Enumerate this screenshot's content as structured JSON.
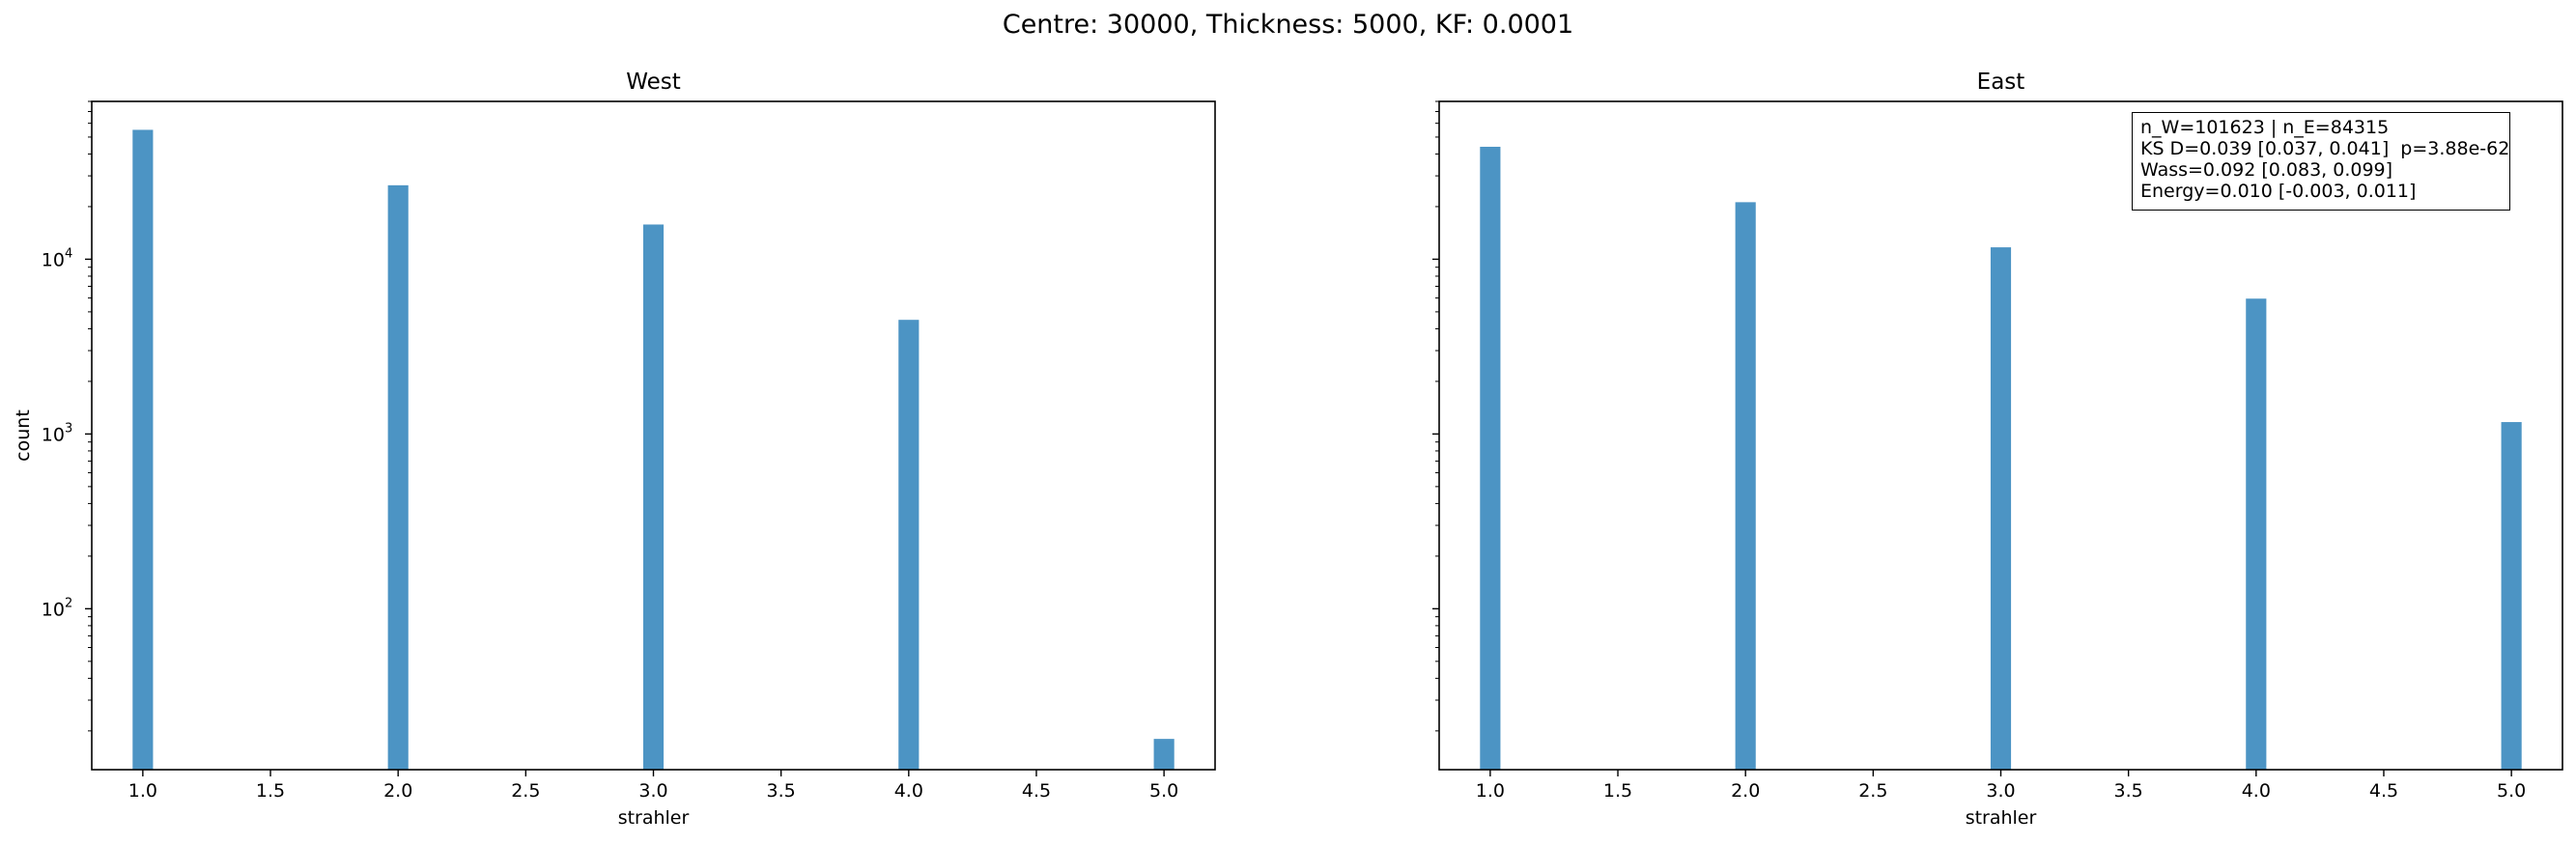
{
  "figure": {
    "suptitle": "Centre: 30000, Thickness: 5000, KF: 0.0001",
    "stats_lines": [
      "n_W=101623 | n_E=84315",
      "KS D=0.039 [0.037, 0.041]  p=3.88e-62",
      "Wass=0.092 [0.083, 0.099]",
      "Energy=0.010 [-0.003, 0.011]"
    ]
  },
  "colors": {
    "bar": "#4c94c4"
  },
  "chart_data": [
    {
      "type": "bar",
      "title": "West",
      "xlabel": "strahler",
      "ylabel": "count",
      "yscale": "log",
      "xlim": [
        0.8,
        5.2
      ],
      "ylim": [
        12,
        80000
      ],
      "xticks": [
        "1.0",
        "1.5",
        "2.0",
        "2.5",
        "3.0",
        "3.5",
        "4.0",
        "4.5",
        "5.0"
      ],
      "yticks": [
        {
          "value": 100,
          "label": "10^2"
        },
        {
          "value": 1000,
          "label": "10^3"
        },
        {
          "value": 10000,
          "label": "10^4"
        }
      ],
      "x": [
        1,
        2,
        3,
        4,
        5
      ],
      "values": [
        55000,
        26500,
        15800,
        4500,
        18
      ]
    },
    {
      "type": "bar",
      "title": "East",
      "xlabel": "strahler",
      "ylabel": "",
      "yscale": "log",
      "xlim": [
        0.8,
        5.2
      ],
      "ylim": [
        12,
        80000
      ],
      "xticks": [
        "1.0",
        "1.5",
        "2.0",
        "2.5",
        "3.0",
        "3.5",
        "4.0",
        "4.5",
        "5.0"
      ],
      "yticks": [
        {
          "value": 100,
          "label": ""
        },
        {
          "value": 1000,
          "label": ""
        },
        {
          "value": 10000,
          "label": ""
        }
      ],
      "x": [
        1,
        2,
        3,
        4,
        5
      ],
      "values": [
        44000,
        21200,
        11700,
        5950,
        1170
      ]
    }
  ]
}
